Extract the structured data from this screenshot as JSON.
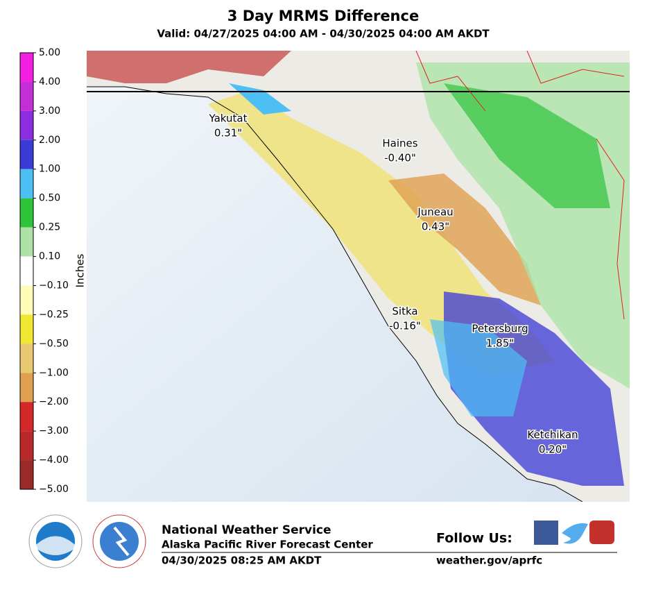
{
  "header": {
    "title": "3 Day MRMS Difference",
    "subtitle": "Valid: 04/27/2025 04:00 AM - 04/30/2025 04:00 AM AKDT"
  },
  "colorbar": {
    "label": "Inches",
    "ticks": [
      "5.00",
      "4.00",
      "3.00",
      "2.00",
      "1.00",
      "0.50",
      "0.25",
      "0.10",
      "−0.10",
      "−0.25",
      "−0.50",
      "−1.00",
      "−2.00",
      "−3.00",
      "−4.00",
      "−5.00"
    ],
    "colors": [
      "#f21ee0",
      "#c32fd6",
      "#8b2ee0",
      "#3a3ad6",
      "#4dbff5",
      "#2ec43a",
      "#aee3a8",
      "#ffffff",
      "#fffbb8",
      "#f0e830",
      "#e8c870",
      "#e0a050",
      "#d42828",
      "#b82a2a",
      "#9a2a2a"
    ]
  },
  "stations": [
    {
      "name": "Yakutat",
      "value": "0.31\""
    },
    {
      "name": "Haines",
      "value": "-0.40\""
    },
    {
      "name": "Juneau",
      "value": "0.43\""
    },
    {
      "name": "Sitka",
      "value": "-0.16\""
    },
    {
      "name": "Petersburg",
      "value": "1.85\""
    },
    {
      "name": "Ketchikan",
      "value": "0.20\""
    }
  ],
  "footer": {
    "agency": "National Weather Service",
    "office": "Alaska Pacific River Forecast Center",
    "timestamp": "04/30/2025 08:25 AM AKDT",
    "follow": "Follow Us:",
    "url": "weather.gov/aprfc"
  }
}
